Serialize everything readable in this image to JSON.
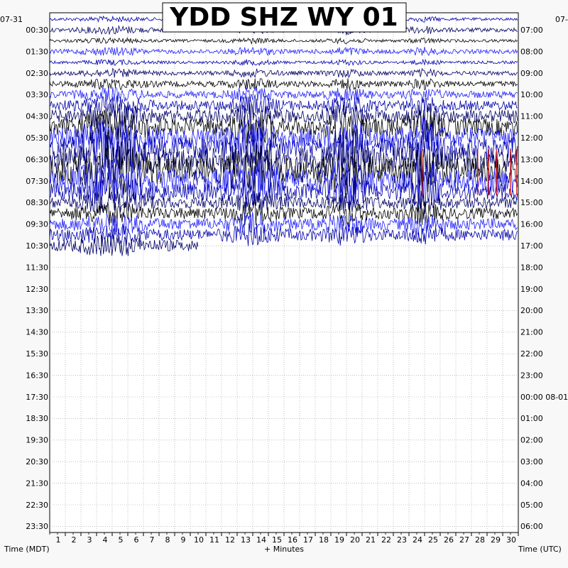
{
  "chart_data": {
    "type": "line",
    "title": "YDD SHZ WY 01",
    "xlabel": "+ Minutes",
    "ylabel_left": "Time (MDT)",
    "ylabel_right": "Time (UTC)",
    "date_left": "07-31",
    "date_right": "07-3",
    "date_right_next": "08-01",
    "x_range": [
      0,
      30
    ],
    "x_ticks": [
      "1",
      "2",
      "3",
      "4",
      "5",
      "6",
      "7",
      "8",
      "9",
      "10",
      "11",
      "12",
      "13",
      "14",
      "15",
      "16",
      "17",
      "18",
      "19",
      "20",
      "21",
      "22",
      "23",
      "24",
      "25",
      "26",
      "27",
      "28",
      "29",
      "30"
    ],
    "left_ticks": [
      "00:30",
      "01:30",
      "02:30",
      "03:30",
      "04:30",
      "05:30",
      "06:30",
      "07:30",
      "08:30",
      "09:30",
      "10:30",
      "11:30",
      "12:30",
      "13:30",
      "14:30",
      "15:30",
      "16:30",
      "17:30",
      "18:30",
      "19:30",
      "20:30",
      "21:30",
      "22:30",
      "23:30"
    ],
    "right_ticks": [
      "07:00",
      "08:00",
      "09:00",
      "10:00",
      "11:00",
      "12:00",
      "13:00",
      "14:00",
      "15:00",
      "16:00",
      "17:00",
      "18:00",
      "19:00",
      "20:00",
      "21:00",
      "22:00",
      "23:00",
      "00:00",
      "01:00",
      "02:00",
      "03:00",
      "04:00",
      "05:00",
      "06:00"
    ],
    "trace_count": 22,
    "trace_colors": [
      "#0000aa",
      "#000066",
      "#000000",
      "#2020ff"
    ],
    "clip_color": "#cc0000",
    "grid": true
  }
}
